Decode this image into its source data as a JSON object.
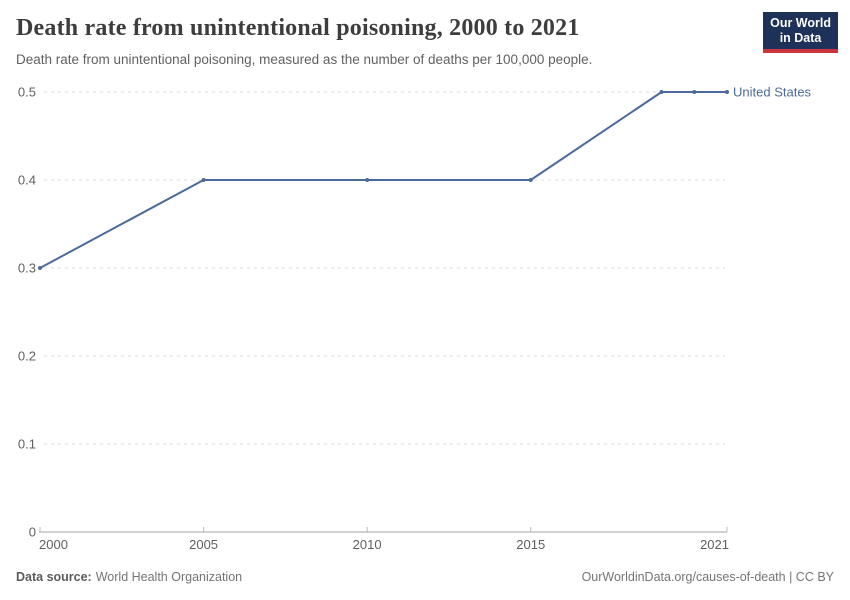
{
  "header": {
    "title": "Death rate from unintentional poisoning, 2000 to 2021",
    "subtitle": "Death rate from unintentional poisoning, measured as the number of deaths per 100,000 people.",
    "logo": {
      "line1": "Our World",
      "line2": "in Data",
      "bg_color": "#1d3159",
      "accent_color": "#c9353f"
    }
  },
  "chart_data": {
    "type": "line",
    "title": "Death rate from unintentional poisoning, 2000 to 2021",
    "xlabel": "",
    "ylabel": "",
    "xlim": [
      2000,
      2021
    ],
    "ylim": [
      0,
      0.5
    ],
    "x_ticks": [
      2000,
      2005,
      2010,
      2015,
      2021
    ],
    "y_ticks": [
      0,
      0.1,
      0.2,
      0.3,
      0.4,
      0.5
    ],
    "grid": "horizontal-dashed",
    "legend_position": "end-of-line",
    "series": [
      {
        "name": "United States",
        "color": "#4c6a9c",
        "x": [
          2000,
          2005,
          2010,
          2015,
          2019,
          2020,
          2021
        ],
        "values": [
          0.3,
          0.4,
          0.4,
          0.4,
          0.5,
          0.5,
          0.5
        ]
      }
    ]
  },
  "footer": {
    "source_label": "Data source:",
    "source_value": "World Health Organization",
    "credit": "OurWorldinData.org/causes-of-death | CC BY"
  }
}
